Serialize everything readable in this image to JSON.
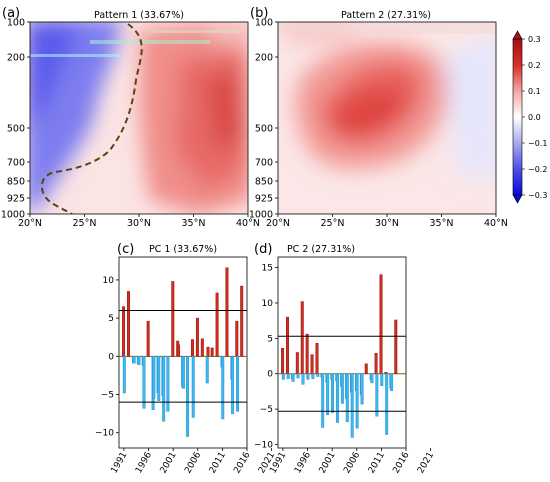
{
  "figure": {
    "panel_a": {
      "label": "(a)",
      "title": "Pattern 1 (33.67%)"
    },
    "panel_b": {
      "label": "(b)",
      "title": "Pattern 2 (27.31%)"
    },
    "panel_c": {
      "label": "(c)",
      "title": "PC 1 (33.67%)"
    },
    "panel_d": {
      "label": "(d)",
      "title": "PC 2 (27.31%)"
    }
  },
  "colors": {
    "positive_bar": "#d62a1e",
    "positive_edge": "#8b1a10",
    "negative_bar": "#3cb9ef",
    "negative_edge": "#2a8fd0",
    "zero_line": "#8b5a00",
    "contour_line": "#5a4410",
    "threshold_line": "#000000"
  },
  "chart_data": [
    {
      "id": "a",
      "type": "heatmap",
      "title": "Pattern 1 (33.67%)",
      "x_ticks": [
        "20°N",
        "25°N",
        "30°N",
        "35°N",
        "40°N"
      ],
      "x_values": [
        20,
        25,
        30,
        35,
        40
      ],
      "y_ticks": [
        "100",
        "200",
        "500",
        "700",
        "850",
        "925",
        "1000"
      ],
      "y_values": [
        100,
        200,
        500,
        700,
        850,
        925,
        1000
      ],
      "colorbar": {
        "ticks": [
          "0.3",
          "0.2",
          "0.1",
          "0.0",
          "−0.1",
          "−0.2",
          "−0.3"
        ],
        "range": [
          -0.3,
          0.3
        ]
      },
      "zero_contour": "dashed"
    },
    {
      "id": "b",
      "type": "heatmap",
      "title": "Pattern 2 (27.31%)",
      "x_ticks": [
        "20°N",
        "25°N",
        "30°N",
        "35°N",
        "40°N"
      ],
      "x_values": [
        20,
        25,
        30,
        35,
        40
      ],
      "y_ticks": [
        "100",
        "200",
        "500",
        "700",
        "850",
        "925",
        "1000"
      ],
      "y_values": [
        100,
        200,
        500,
        700,
        850,
        925,
        1000
      ]
    },
    {
      "id": "c",
      "type": "bar",
      "title": "PC 1 (33.67%)",
      "x_ticks": [
        "1991",
        "1996",
        "2001",
        "2006",
        "2011",
        "2016",
        "2021"
      ],
      "y_ticks": [
        "10",
        "5",
        "0",
        "−5",
        "−10"
      ],
      "ylim": [
        -12,
        13
      ],
      "threshold_lines": [
        6,
        -6
      ],
      "series": [
        {
          "values": [
            6.5,
            8.5,
            -0.8,
            -1.0,
            -1.2,
            4.6,
            -7.0,
            -4.8,
            -5.2,
            -7.2,
            9.8,
            2.0,
            -4.0,
            -10.5,
            2.2,
            5.0,
            2.3,
            -3.5,
            1.1,
            8.3,
            -1.4,
            11.6,
            -3.0,
            4.6,
            9.2
          ],
          "secondary_values": [
            -4.8,
            0,
            -0.9,
            -1.1,
            -6.8,
            0,
            -5.5,
            -5.8,
            -8.5,
            0,
            0,
            1.5,
            -4.2,
            0,
            -8.0,
            0,
            0,
            1.2,
            0,
            0,
            -8.2,
            0,
            -7.5,
            -7.2,
            0
          ]
        }
      ]
    },
    {
      "id": "d",
      "type": "bar",
      "title": "PC 2 (27.31%)",
      "x_ticks": [
        "1991",
        "1996",
        "2001",
        "2006",
        "2011",
        "2016",
        "2021"
      ],
      "y_ticks": [
        "15",
        "10",
        "5",
        "0",
        "−5",
        "−10"
      ],
      "ylim": [
        -10.5,
        16.5
      ],
      "threshold_lines": [
        5.3,
        -5.3
      ],
      "series": [
        {
          "values": [
            3.6,
            8.0,
            -0.7,
            3.0,
            10.2,
            5.6,
            2.7,
            4.3,
            -0.5,
            -1.2,
            -0.8,
            -1.0,
            -1.8,
            -3.5,
            -2.6,
            -2.4,
            -3.0,
            1.4,
            -0.9,
            2.9,
            14.0,
            0.2,
            -2.1,
            7.6,
            0
          ],
          "secondary_values": [
            -0.8,
            -0.7,
            -1.1,
            -0.6,
            -1.5,
            -0.8,
            -0.7,
            -0.4,
            -7.6,
            -5.8,
            -5.5,
            -6.9,
            -4.2,
            -6.8,
            -9.0,
            -7.7,
            -4.3,
            0,
            -1.3,
            -6.0,
            -1.7,
            -8.6,
            -2.4,
            0,
            0
          ]
        }
      ]
    }
  ]
}
